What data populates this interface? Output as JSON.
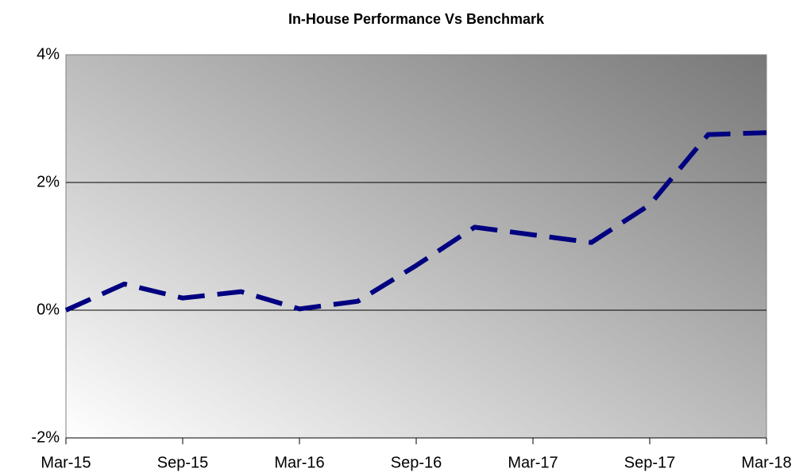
{
  "chart_data": {
    "type": "line",
    "title": "In-House Performance Vs Benchmark",
    "categories": [
      "Mar-15",
      null,
      "Sep-15",
      null,
      "Mar-16",
      null,
      "Sep-16",
      null,
      "Mar-17",
      null,
      "Sep-17",
      null,
      "Mar-18"
    ],
    "series": [
      {
        "color": "#000080",
        "values": [
          0,
          0.41,
          0.19,
          0.29,
          0.02,
          0.14,
          0.7,
          1.3,
          1.18,
          1.06,
          1.65,
          2.75,
          2.78
        ]
      }
    ],
    "ylim": [
      -2,
      4
    ],
    "yticks": [
      {
        "value": -2,
        "label": "-2%"
      },
      {
        "value": 0,
        "label": "0%"
      },
      {
        "value": 2,
        "label": "2%"
      },
      {
        "value": 4,
        "label": "4%"
      }
    ],
    "grid": true
  }
}
